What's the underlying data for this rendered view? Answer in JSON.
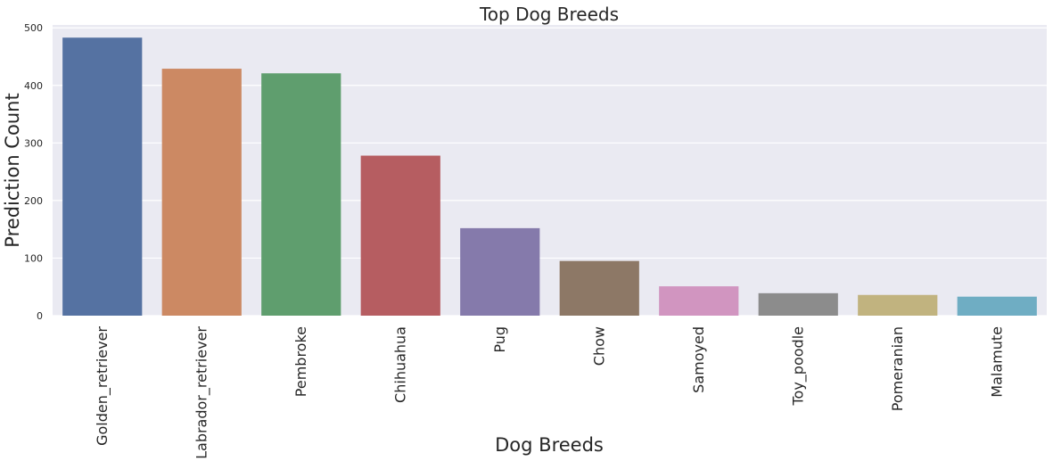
{
  "chart_data": {
    "type": "bar",
    "title": "Top Dog Breeds",
    "xlabel": "Dog Breeds",
    "ylabel": "Prediction Count",
    "categories": [
      "Golden_retriever",
      "Labrador_retriever",
      "Pembroke",
      "Chihuahua",
      "Pug",
      "Chow",
      "Samoyed",
      "Toy_poodle",
      "Pomeranian",
      "Malamute"
    ],
    "values": [
      483,
      429,
      421,
      278,
      152,
      95,
      51,
      39,
      36,
      33
    ],
    "colors": [
      "#5572a2",
      "#cc8963",
      "#5f9e6e",
      "#b65d61",
      "#857aab",
      "#8d7866",
      "#d195c0",
      "#8c8c8c",
      "#c1b37f",
      "#6fadc3"
    ],
    "ylim": [
      0,
      505
    ],
    "yticks": [
      0,
      100,
      200,
      300,
      400,
      500
    ],
    "grid": true,
    "background": "#eaeaf2",
    "grid_color": "#ffffff"
  }
}
